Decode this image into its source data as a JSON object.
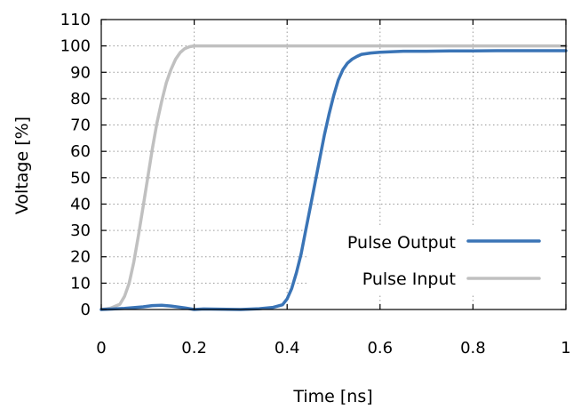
{
  "chart_data": {
    "type": "line",
    "title": "",
    "xlabel": "Time [ns]",
    "ylabel": "Voltage [%]",
    "xlim": [
      0,
      1
    ],
    "ylim": [
      0,
      110
    ],
    "x_ticks": [
      0,
      0.2,
      0.4,
      0.6,
      0.8,
      1
    ],
    "x_tick_labels": [
      "0",
      "0.2",
      "0.4",
      "0.6",
      "0.8",
      "1"
    ],
    "y_ticks": [
      0,
      10,
      20,
      30,
      40,
      50,
      60,
      70,
      80,
      90,
      100,
      110
    ],
    "y_tick_labels": [
      "0",
      "10",
      "20",
      "30",
      "40",
      "50",
      "60",
      "70",
      "80",
      "90",
      "100",
      "110"
    ],
    "grid": true,
    "legend_position": "bottom-right",
    "series": [
      {
        "name": "Pulse Output",
        "color": "#3a74b6",
        "x": [
          0,
          0.05,
          0.09,
          0.11,
          0.13,
          0.15,
          0.18,
          0.2,
          0.22,
          0.3,
          0.34,
          0.37,
          0.39,
          0.4,
          0.41,
          0.42,
          0.43,
          0.44,
          0.45,
          0.46,
          0.47,
          0.48,
          0.49,
          0.5,
          0.51,
          0.52,
          0.53,
          0.54,
          0.55,
          0.56,
          0.58,
          0.6,
          0.65,
          0.7,
          0.75,
          0.8,
          0.85,
          0.9,
          0.95,
          1.0
        ],
        "y": [
          0,
          0.4,
          1.0,
          1.5,
          1.6,
          1.3,
          0.6,
          0.0,
          0.2,
          0.0,
          0.3,
          0.8,
          1.8,
          4,
          8,
          14,
          21,
          30,
          39,
          48,
          57,
          66,
          74,
          81,
          87,
          91,
          93.5,
          95,
          96,
          96.8,
          97.3,
          97.6,
          98,
          98,
          98.1,
          98.1,
          98.2,
          98.2,
          98.2,
          98.2
        ]
      },
      {
        "name": "Pulse Input",
        "color": "#c0c0c0",
        "x": [
          0,
          0.02,
          0.04,
          0.05,
          0.06,
          0.07,
          0.08,
          0.09,
          0.1,
          0.11,
          0.12,
          0.13,
          0.14,
          0.15,
          0.16,
          0.17,
          0.18,
          0.19,
          0.2,
          0.21,
          0.22,
          0.25,
          0.3,
          0.4,
          0.5,
          0.6,
          0.7,
          0.8,
          0.9,
          1.0
        ],
        "y": [
          0,
          0.5,
          2,
          5,
          10,
          18,
          28,
          39,
          50,
          61,
          71,
          79,
          86,
          91,
          95,
          97.5,
          99,
          99.7,
          100,
          100,
          100,
          100,
          100,
          100,
          100,
          100,
          100,
          100,
          100,
          100
        ]
      }
    ]
  }
}
